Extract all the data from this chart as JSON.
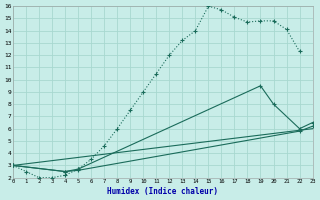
{
  "background_color": "#c8ede8",
  "grid_color": "#a8d8d0",
  "line_color": "#1a6b5a",
  "xlim": [
    0,
    23
  ],
  "ylim": [
    2,
    16
  ],
  "xtick_labels": [
    "0",
    "1",
    "2",
    "3",
    "4",
    "5",
    "6",
    "7",
    "8",
    "9",
    "10",
    "11",
    "12",
    "13",
    "14",
    "15",
    "16",
    "17",
    "18",
    "19",
    "20",
    "21",
    "22",
    "23"
  ],
  "xticks": [
    0,
    1,
    2,
    3,
    4,
    5,
    6,
    7,
    8,
    9,
    10,
    11,
    12,
    13,
    14,
    15,
    16,
    17,
    18,
    19,
    20,
    21,
    22,
    23
  ],
  "yticks": [
    2,
    3,
    4,
    5,
    6,
    7,
    8,
    9,
    10,
    11,
    12,
    13,
    14,
    15,
    16
  ],
  "xlabel": "Humidex (Indice chaleur)",
  "c1x": [
    0,
    1,
    2,
    3,
    4,
    5,
    6,
    7,
    8,
    9,
    10,
    11,
    12,
    13,
    14,
    15,
    16,
    17,
    18,
    19,
    20,
    21,
    22
  ],
  "c1y": [
    3.0,
    2.5,
    2.0,
    2.0,
    2.2,
    2.7,
    3.5,
    4.6,
    6.0,
    7.5,
    9.0,
    10.5,
    12.0,
    13.2,
    14.0,
    16.0,
    15.7,
    15.1,
    14.7,
    14.8,
    14.8,
    14.1,
    12.3
  ],
  "c2x": [
    0,
    4,
    5,
    19,
    20,
    22,
    23
  ],
  "c2y": [
    3.0,
    2.5,
    2.7,
    9.5,
    8.0,
    6.0,
    6.5
  ],
  "c3x": [
    0,
    4,
    5,
    22,
    23
  ],
  "c3y": [
    3.0,
    2.5,
    2.6,
    5.8,
    6.2
  ],
  "c4x": [
    0,
    23
  ],
  "c4y": [
    3.0,
    6.0
  ]
}
